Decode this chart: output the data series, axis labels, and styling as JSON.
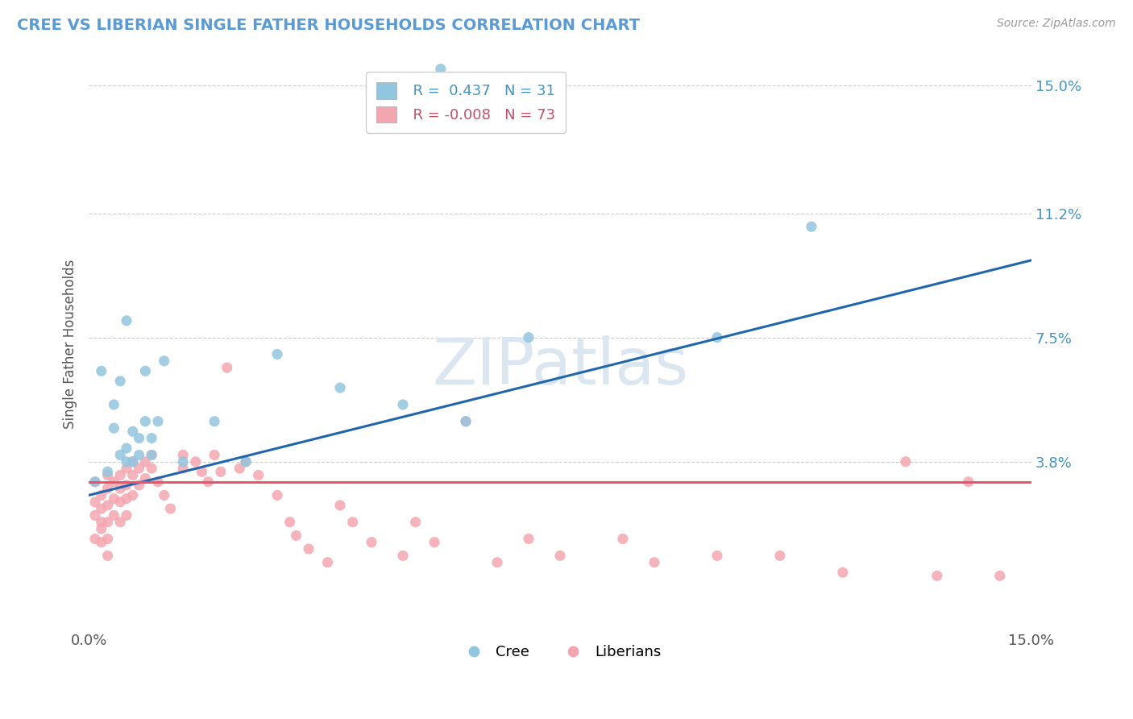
{
  "title": "CREE VS LIBERIAN SINGLE FATHER HOUSEHOLDS CORRELATION CHART",
  "source": "Source: ZipAtlas.com",
  "ylabel": "Single Father Households",
  "xmin": 0.0,
  "xmax": 0.15,
  "ymin": -0.012,
  "ymax": 0.158,
  "cree_color": "#92c5de",
  "liberian_color": "#f4a6b0",
  "cree_line_color": "#2166ac",
  "liberian_line_color": "#e8546a",
  "cree_R": 0.437,
  "cree_N": 31,
  "liberian_R": -0.008,
  "liberian_N": 73,
  "watermark": "ZIPatlas",
  "watermark_color": "#dce6f0",
  "yticks": [
    0.038,
    0.075,
    0.112,
    0.15
  ],
  "ytick_labels": [
    "3.8%",
    "7.5%",
    "11.2%",
    "15.0%"
  ],
  "cree_line_x0": 0.0,
  "cree_line_y0": 0.028,
  "cree_line_x1": 0.15,
  "cree_line_y1": 0.098,
  "lib_line_x0": 0.0,
  "lib_line_y0": 0.032,
  "lib_line_x1": 0.15,
  "lib_line_y1": 0.032,
  "cree_x": [
    0.001,
    0.002,
    0.003,
    0.004,
    0.004,
    0.005,
    0.005,
    0.006,
    0.006,
    0.007,
    0.007,
    0.008,
    0.008,
    0.009,
    0.009,
    0.01,
    0.01,
    0.011,
    0.012,
    0.015,
    0.02,
    0.025,
    0.03,
    0.04,
    0.05,
    0.056,
    0.06,
    0.07,
    0.1,
    0.115,
    0.006
  ],
  "cree_y": [
    0.032,
    0.065,
    0.035,
    0.048,
    0.055,
    0.04,
    0.062,
    0.038,
    0.042,
    0.038,
    0.047,
    0.04,
    0.045,
    0.05,
    0.065,
    0.04,
    0.045,
    0.05,
    0.068,
    0.038,
    0.05,
    0.038,
    0.07,
    0.06,
    0.055,
    0.155,
    0.05,
    0.075,
    0.075,
    0.108,
    0.08
  ],
  "liberian_x": [
    0.001,
    0.001,
    0.001,
    0.001,
    0.002,
    0.002,
    0.002,
    0.002,
    0.002,
    0.003,
    0.003,
    0.003,
    0.003,
    0.003,
    0.004,
    0.004,
    0.004,
    0.005,
    0.005,
    0.005,
    0.005,
    0.006,
    0.006,
    0.006,
    0.006,
    0.007,
    0.007,
    0.007,
    0.008,
    0.008,
    0.009,
    0.009,
    0.01,
    0.01,
    0.011,
    0.012,
    0.013,
    0.015,
    0.015,
    0.017,
    0.018,
    0.019,
    0.02,
    0.021,
    0.022,
    0.024,
    0.025,
    0.027,
    0.03,
    0.032,
    0.033,
    0.035,
    0.038,
    0.04,
    0.042,
    0.045,
    0.05,
    0.052,
    0.055,
    0.06,
    0.065,
    0.07,
    0.075,
    0.085,
    0.09,
    0.1,
    0.11,
    0.12,
    0.13,
    0.135,
    0.14,
    0.145,
    0.003
  ],
  "liberian_y": [
    0.032,
    0.026,
    0.022,
    0.015,
    0.028,
    0.024,
    0.02,
    0.018,
    0.014,
    0.034,
    0.03,
    0.025,
    0.02,
    0.015,
    0.032,
    0.027,
    0.022,
    0.034,
    0.03,
    0.026,
    0.02,
    0.036,
    0.031,
    0.027,
    0.022,
    0.038,
    0.034,
    0.028,
    0.036,
    0.031,
    0.038,
    0.033,
    0.04,
    0.036,
    0.032,
    0.028,
    0.024,
    0.04,
    0.036,
    0.038,
    0.035,
    0.032,
    0.04,
    0.035,
    0.066,
    0.036,
    0.038,
    0.034,
    0.028,
    0.02,
    0.016,
    0.012,
    0.008,
    0.025,
    0.02,
    0.014,
    0.01,
    0.02,
    0.014,
    0.05,
    0.008,
    0.015,
    0.01,
    0.015,
    0.008,
    0.01,
    0.01,
    0.005,
    0.038,
    0.004,
    0.032,
    0.004,
    0.01
  ]
}
